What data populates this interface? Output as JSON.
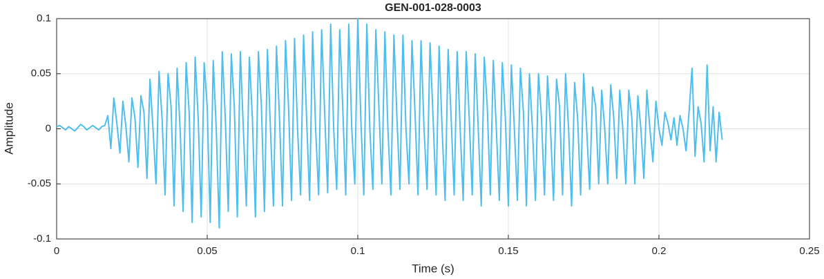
{
  "chart_data": {
    "type": "line",
    "title": "GEN-001-028-0003",
    "x_label": "Time (s)",
    "y_label": "Amplitude",
    "x": [
      0,
      0.001,
      0.002,
      0.003,
      0.004,
      0.005,
      0.006,
      0.007,
      0.008,
      0.009,
      0.01,
      0.011,
      0.012,
      0.013,
      0.014,
      0.015,
      0.016,
      0.017,
      0.018,
      0.019,
      0.02,
      0.021,
      0.022,
      0.023,
      0.024,
      0.025,
      0.026,
      0.027,
      0.028,
      0.029,
      0.03,
      0.031,
      0.032,
      0.033,
      0.034,
      0.035,
      0.036,
      0.037,
      0.038,
      0.039,
      0.04,
      0.041,
      0.042,
      0.043,
      0.044,
      0.045,
      0.046,
      0.047,
      0.048,
      0.049,
      0.05,
      0.051,
      0.052,
      0.053,
      0.054,
      0.055,
      0.056,
      0.057,
      0.058,
      0.059,
      0.06,
      0.061,
      0.062,
      0.063,
      0.064,
      0.065,
      0.066,
      0.067,
      0.068,
      0.069,
      0.07,
      0.071,
      0.072,
      0.073,
      0.074,
      0.075,
      0.076,
      0.077,
      0.078,
      0.079,
      0.08,
      0.081,
      0.082,
      0.083,
      0.084,
      0.085,
      0.086,
      0.087,
      0.088,
      0.089,
      0.09,
      0.091,
      0.092,
      0.093,
      0.094,
      0.095,
      0.096,
      0.097,
      0.098,
      0.099,
      0.1,
      0.101,
      0.102,
      0.103,
      0.104,
      0.105,
      0.106,
      0.107,
      0.108,
      0.109,
      0.11,
      0.111,
      0.112,
      0.113,
      0.114,
      0.115,
      0.116,
      0.117,
      0.118,
      0.119,
      0.12,
      0.121,
      0.122,
      0.123,
      0.124,
      0.125,
      0.126,
      0.127,
      0.128,
      0.129,
      0.13,
      0.131,
      0.132,
      0.133,
      0.134,
      0.135,
      0.136,
      0.137,
      0.138,
      0.139,
      0.14,
      0.141,
      0.142,
      0.143,
      0.144,
      0.145,
      0.146,
      0.147,
      0.148,
      0.149,
      0.15,
      0.151,
      0.152,
      0.153,
      0.154,
      0.155,
      0.156,
      0.157,
      0.158,
      0.159,
      0.16,
      0.161,
      0.162,
      0.163,
      0.164,
      0.165,
      0.166,
      0.167,
      0.168,
      0.169,
      0.17,
      0.171,
      0.172,
      0.173,
      0.174,
      0.175,
      0.176,
      0.177,
      0.178,
      0.179,
      0.18,
      0.181,
      0.182,
      0.183,
      0.184,
      0.185,
      0.186,
      0.187,
      0.188,
      0.189,
      0.19,
      0.191,
      0.192,
      0.193,
      0.194,
      0.195,
      0.196,
      0.197,
      0.198,
      0.199,
      0.2,
      0.201,
      0.202,
      0.203,
      0.204,
      0.205,
      0.206,
      0.207,
      0.208,
      0.209,
      0.21,
      0.211,
      0.212,
      0.213,
      0.214,
      0.215,
      0.216,
      0.217,
      0.218,
      0.219,
      0.22,
      0.221
    ],
    "series": [
      {
        "color": "#4dbeee",
        "values": [
          0.002,
          0.003,
          0.001,
          -0.001,
          0.002,
          0.0,
          -0.002,
          0.001,
          0.004,
          0.002,
          -0.001,
          0.001,
          0.003,
          0.001,
          -0.001,
          0.002,
          0.003,
          0.012,
          -0.018,
          0.028,
          0.005,
          -0.022,
          0.025,
          0.002,
          -0.03,
          0.028,
          0.01,
          -0.035,
          0.03,
          0.015,
          -0.045,
          0.045,
          0.0,
          -0.05,
          0.052,
          0.01,
          -0.06,
          0.05,
          0.02,
          -0.07,
          0.055,
          0.0,
          -0.075,
          0.06,
          0.015,
          -0.085,
          0.065,
          0.01,
          -0.08,
          0.06,
          0.02,
          -0.085,
          0.062,
          0.0,
          -0.09,
          0.07,
          0.01,
          -0.075,
          0.068,
          0.02,
          -0.08,
          0.07,
          0.0,
          -0.07,
          0.065,
          0.01,
          -0.08,
          0.07,
          0.02,
          -0.075,
          0.072,
          0.0,
          -0.07,
          0.075,
          0.01,
          -0.07,
          0.08,
          0.02,
          -0.065,
          0.082,
          0.0,
          -0.06,
          0.085,
          0.01,
          -0.065,
          0.088,
          0.0,
          -0.06,
          0.09,
          0.015,
          -0.058,
          0.095,
          0.0,
          -0.055,
          0.09,
          0.02,
          -0.06,
          0.095,
          0.0,
          -0.05,
          0.1,
          0.01,
          -0.06,
          0.095,
          0.0,
          -0.055,
          0.09,
          0.02,
          -0.05,
          0.088,
          0.0,
          -0.06,
          0.085,
          0.01,
          -0.055,
          0.085,
          0.0,
          -0.05,
          0.08,
          0.015,
          -0.06,
          0.08,
          0.0,
          -0.055,
          0.078,
          0.01,
          -0.06,
          0.075,
          0.0,
          -0.065,
          0.072,
          0.01,
          -0.06,
          0.07,
          0.0,
          -0.065,
          0.07,
          0.01,
          -0.06,
          0.068,
          0.0,
          -0.07,
          0.065,
          0.02,
          -0.06,
          0.062,
          0.0,
          -0.065,
          0.06,
          0.01,
          -0.07,
          0.058,
          0.0,
          -0.065,
          0.055,
          0.015,
          -0.07,
          0.05,
          0.0,
          -0.065,
          0.05,
          0.01,
          -0.06,
          0.048,
          0.0,
          -0.065,
          0.045,
          0.02,
          -0.06,
          0.05,
          0.0,
          -0.07,
          0.042,
          0.01,
          -0.06,
          0.05,
          0.0,
          -0.055,
          0.038,
          0.02,
          -0.05,
          0.035,
          0.0,
          -0.05,
          0.04,
          0.01,
          -0.045,
          0.035,
          0.0,
          -0.05,
          0.035,
          0.01,
          -0.05,
          0.03,
          0.0,
          -0.045,
          0.035,
          0.0,
          -0.03,
          0.025,
          0.0,
          -0.015,
          0.015,
          0.005,
          -0.01,
          0.01,
          -0.015,
          0.012,
          0.0,
          -0.02,
          0.015,
          0.055,
          -0.025,
          0.02,
          0.005,
          -0.03,
          0.058,
          -0.02,
          0.02,
          -0.03,
          0.015,
          -0.01
        ]
      }
    ],
    "xlim": [
      0,
      0.25
    ],
    "xticks": [
      0,
      0.05,
      0.1,
      0.15,
      0.2,
      0.25
    ],
    "ylim": [
      -0.1,
      0.1
    ],
    "yticks": [
      -0.1,
      -0.05,
      0,
      0.05,
      0.1
    ],
    "grid": true
  }
}
